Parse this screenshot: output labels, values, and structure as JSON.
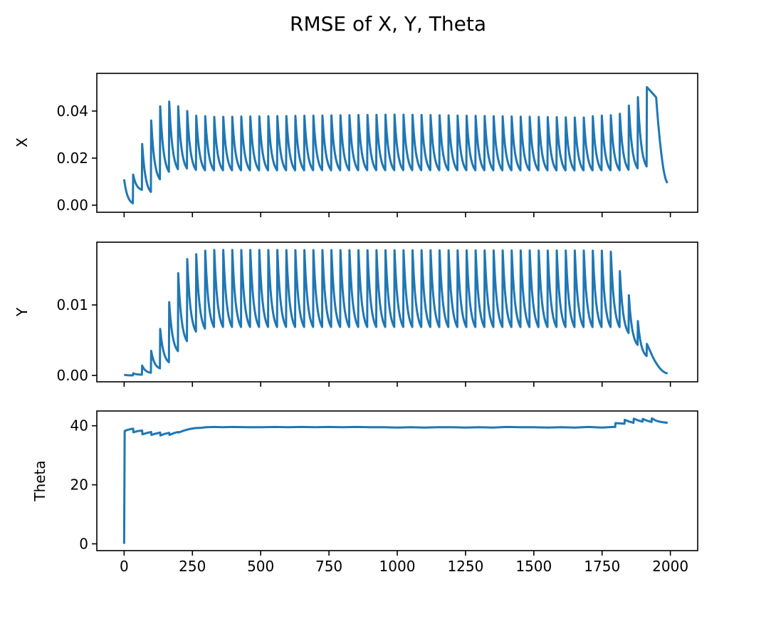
{
  "figure": {
    "title": "RMSE of X, Y, Theta",
    "line_color": "#1f77b4"
  },
  "chart_data": [
    {
      "type": "line",
      "subplot": "top",
      "ylabel": "X",
      "xlim": [
        -100,
        2100
      ],
      "ylim": [
        -0.003,
        0.056
      ],
      "xticks": [
        0,
        250,
        500,
        750,
        1000,
        1250,
        1500,
        1750,
        2000
      ],
      "show_xtick_labels": false,
      "yticks": [
        0.0,
        0.02,
        0.04
      ],
      "ytick_labels": [
        "0.00",
        "0.02",
        "0.04"
      ],
      "grid": false,
      "legend": "none",
      "period": 33,
      "step_points": [
        {
          "x": 0,
          "y": 0.011
        },
        {
          "x": 33,
          "y": 0.013
        },
        {
          "x": 66,
          "y": 0.026
        },
        {
          "x": 99,
          "y": 0.036
        },
        {
          "x": 132,
          "y": 0.042
        },
        {
          "x": 165,
          "y": 0.044
        },
        {
          "x": 198,
          "y": 0.042
        },
        {
          "x": 231,
          "y": 0.04
        },
        {
          "x": 264,
          "y": 0.038
        },
        {
          "x": 297,
          "y": 0.0378
        },
        {
          "x": 330,
          "y": 0.0375
        },
        {
          "x": 1000,
          "y": 0.0385
        },
        {
          "x": 1680,
          "y": 0.0372
        },
        {
          "x": 1713,
          "y": 0.0378
        },
        {
          "x": 1746,
          "y": 0.038
        },
        {
          "x": 1779,
          "y": 0.0382
        },
        {
          "x": 1812,
          "y": 0.0385
        },
        {
          "x": 1845,
          "y": 0.042
        },
        {
          "x": 1878,
          "y": 0.0455
        },
        {
          "x": 1911,
          "y": 0.05
        },
        {
          "x": 1944,
          "y": 0.052
        }
      ],
      "trough_points": [
        {
          "x": 0,
          "y": 0.0
        },
        {
          "x": 33,
          "y": 0.006
        },
        {
          "x": 66,
          "y": 0.004
        },
        {
          "x": 99,
          "y": 0.009
        },
        {
          "x": 132,
          "y": 0.012
        },
        {
          "x": 165,
          "y": 0.013
        },
        {
          "x": 198,
          "y": 0.0135
        },
        {
          "x": 231,
          "y": 0.013
        },
        {
          "x": 264,
          "y": 0.013
        },
        {
          "x": 1800,
          "y": 0.013
        },
        {
          "x": 1845,
          "y": 0.0135
        },
        {
          "x": 1878,
          "y": 0.014
        },
        {
          "x": 1911,
          "y": 0.015
        },
        {
          "x": 1944,
          "y": 0.017
        }
      ],
      "tail": {
        "start": 1944,
        "end": 1990,
        "end_value": 0.0095
      }
    },
    {
      "type": "line",
      "subplot": "middle",
      "ylabel": "Y",
      "xlim": [
        -100,
        2100
      ],
      "ylim": [
        -0.0009,
        0.0189
      ],
      "xticks": [
        0,
        250,
        500,
        750,
        1000,
        1250,
        1500,
        1750,
        2000
      ],
      "show_xtick_labels": false,
      "yticks": [
        0.0,
        0.01
      ],
      "ytick_labels": [
        "0.00",
        "0.01"
      ],
      "grid": false,
      "legend": "none",
      "period": 33,
      "step_points": [
        {
          "x": 0,
          "y": 0.0001
        },
        {
          "x": 33,
          "y": 0.0003
        },
        {
          "x": 66,
          "y": 0.0014
        },
        {
          "x": 99,
          "y": 0.0035
        },
        {
          "x": 132,
          "y": 0.0066
        },
        {
          "x": 165,
          "y": 0.0104
        },
        {
          "x": 198,
          "y": 0.0145
        },
        {
          "x": 231,
          "y": 0.0165
        },
        {
          "x": 264,
          "y": 0.0172
        },
        {
          "x": 297,
          "y": 0.0177
        },
        {
          "x": 330,
          "y": 0.0178
        },
        {
          "x": 1780,
          "y": 0.0177
        },
        {
          "x": 1800,
          "y": 0.0162
        },
        {
          "x": 1833,
          "y": 0.0131
        },
        {
          "x": 1866,
          "y": 0.0093
        },
        {
          "x": 1899,
          "y": 0.0058
        },
        {
          "x": 1932,
          "y": 0.0029
        }
      ],
      "trough_points": [
        {
          "x": 0,
          "y": 0.0
        },
        {
          "x": 33,
          "y": 0.0001
        },
        {
          "x": 66,
          "y": 0.0003
        },
        {
          "x": 99,
          "y": 0.0008
        },
        {
          "x": 132,
          "y": 0.0015
        },
        {
          "x": 165,
          "y": 0.0029
        },
        {
          "x": 198,
          "y": 0.0041
        },
        {
          "x": 231,
          "y": 0.0054
        },
        {
          "x": 264,
          "y": 0.0058
        },
        {
          "x": 297,
          "y": 0.006
        },
        {
          "x": 1800,
          "y": 0.006
        },
        {
          "x": 1833,
          "y": 0.0045
        },
        {
          "x": 1866,
          "y": 0.0029
        },
        {
          "x": 1899,
          "y": 0.0017
        },
        {
          "x": 1932,
          "y": 0.0012
        }
      ],
      "tail": {
        "start": 1932,
        "end": 1990,
        "end_value": 0.0003
      }
    },
    {
      "type": "line",
      "subplot": "bottom",
      "ylabel": "Theta",
      "xlabel": "",
      "xlim": [
        -100,
        2100
      ],
      "ylim": [
        -2.3,
        45.0
      ],
      "xticks": [
        0,
        250,
        500,
        750,
        1000,
        1250,
        1500,
        1750,
        2000
      ],
      "xtick_labels": [
        "0",
        "250",
        "500",
        "750",
        "1000",
        "1250",
        "1500",
        "1750",
        "2000"
      ],
      "show_xtick_labels": true,
      "yticks": [
        0,
        20,
        40
      ],
      "ytick_labels": [
        "0",
        "20",
        "40"
      ],
      "grid": false,
      "legend": "none",
      "points": [
        {
          "x": 0,
          "y": 0
        },
        {
          "x": 2,
          "y": 38.2
        },
        {
          "x": 12,
          "y": 38.6
        },
        {
          "x": 25,
          "y": 38.9
        },
        {
          "x": 33,
          "y": 39.0
        },
        {
          "x": 34,
          "y": 37.8
        },
        {
          "x": 50,
          "y": 38.2
        },
        {
          "x": 66,
          "y": 38.4
        },
        {
          "x": 67,
          "y": 37.1
        },
        {
          "x": 85,
          "y": 37.6
        },
        {
          "x": 99,
          "y": 37.9
        },
        {
          "x": 100,
          "y": 36.9
        },
        {
          "x": 118,
          "y": 37.4
        },
        {
          "x": 132,
          "y": 37.7
        },
        {
          "x": 133,
          "y": 36.7
        },
        {
          "x": 150,
          "y": 37.3
        },
        {
          "x": 165,
          "y": 37.6
        },
        {
          "x": 166,
          "y": 36.9
        },
        {
          "x": 185,
          "y": 37.6
        },
        {
          "x": 198,
          "y": 37.9
        },
        {
          "x": 199,
          "y": 37.7
        },
        {
          "x": 220,
          "y": 38.4
        },
        {
          "x": 240,
          "y": 38.9
        },
        {
          "x": 260,
          "y": 39.2
        },
        {
          "x": 280,
          "y": 39.3
        },
        {
          "x": 300,
          "y": 39.5
        },
        {
          "x": 330,
          "y": 39.6
        },
        {
          "x": 360,
          "y": 39.5
        },
        {
          "x": 400,
          "y": 39.6
        },
        {
          "x": 450,
          "y": 39.5
        },
        {
          "x": 500,
          "y": 39.5
        },
        {
          "x": 550,
          "y": 39.6
        },
        {
          "x": 600,
          "y": 39.5
        },
        {
          "x": 650,
          "y": 39.6
        },
        {
          "x": 700,
          "y": 39.5
        },
        {
          "x": 750,
          "y": 39.6
        },
        {
          "x": 800,
          "y": 39.5
        },
        {
          "x": 850,
          "y": 39.6
        },
        {
          "x": 900,
          "y": 39.5
        },
        {
          "x": 950,
          "y": 39.5
        },
        {
          "x": 1000,
          "y": 39.4
        },
        {
          "x": 1050,
          "y": 39.5
        },
        {
          "x": 1100,
          "y": 39.4
        },
        {
          "x": 1150,
          "y": 39.5
        },
        {
          "x": 1200,
          "y": 39.5
        },
        {
          "x": 1250,
          "y": 39.4
        },
        {
          "x": 1300,
          "y": 39.5
        },
        {
          "x": 1350,
          "y": 39.4
        },
        {
          "x": 1400,
          "y": 39.6
        },
        {
          "x": 1450,
          "y": 39.5
        },
        {
          "x": 1500,
          "y": 39.5
        },
        {
          "x": 1550,
          "y": 39.4
        },
        {
          "x": 1600,
          "y": 39.5
        },
        {
          "x": 1650,
          "y": 39.4
        },
        {
          "x": 1700,
          "y": 39.6
        },
        {
          "x": 1750,
          "y": 39.4
        },
        {
          "x": 1790,
          "y": 39.6
        },
        {
          "x": 1798,
          "y": 39.6
        },
        {
          "x": 1799,
          "y": 40.9
        },
        {
          "x": 1815,
          "y": 40.8
        },
        {
          "x": 1832,
          "y": 40.7
        },
        {
          "x": 1833,
          "y": 42.0
        },
        {
          "x": 1850,
          "y": 41.4
        },
        {
          "x": 1865,
          "y": 41.0
        },
        {
          "x": 1866,
          "y": 42.4
        },
        {
          "x": 1882,
          "y": 41.8
        },
        {
          "x": 1898,
          "y": 41.4
        },
        {
          "x": 1899,
          "y": 42.3
        },
        {
          "x": 1915,
          "y": 41.7
        },
        {
          "x": 1931,
          "y": 41.3
        },
        {
          "x": 1932,
          "y": 42.5
        },
        {
          "x": 1948,
          "y": 41.7
        },
        {
          "x": 1965,
          "y": 41.3
        },
        {
          "x": 1990,
          "y": 41.0
        }
      ]
    }
  ]
}
